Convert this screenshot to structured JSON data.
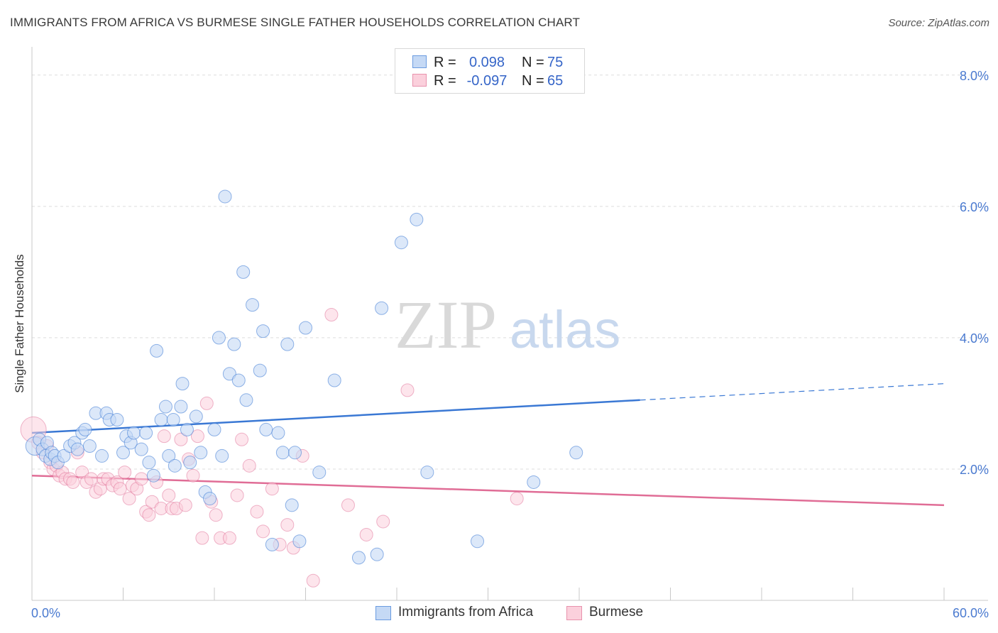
{
  "header": {
    "title": "IMMIGRANTS FROM AFRICA VS BURMESE SINGLE FATHER HOUSEHOLDS CORRELATION CHART",
    "source": "Source: ZipAtlas.com"
  },
  "watermark": {
    "zip": "ZIP",
    "atlas": "atlas"
  },
  "legend": {
    "series": [
      {
        "r_label": "R =",
        "r_value": "0.098",
        "n_label": "N =",
        "n_value": "75",
        "swatch_fill": "#c5d9f5",
        "swatch_stroke": "#6a9be0"
      },
      {
        "r_label": "R =",
        "r_value": "-0.097",
        "n_label": "N =",
        "n_value": "65",
        "swatch_fill": "#fbd0dc",
        "swatch_stroke": "#e892ad"
      }
    ]
  },
  "bottom_legend": {
    "items": [
      {
        "label": "Immigrants from Africa",
        "swatch_fill": "#c5d9f5",
        "swatch_stroke": "#6a9be0"
      },
      {
        "label": "Burmese",
        "swatch_fill": "#fbd0dc",
        "swatch_stroke": "#e892ad"
      }
    ]
  },
  "chart_data": {
    "type": "scatter",
    "title": "IMMIGRANTS FROM AFRICA VS BURMESE SINGLE FATHER HOUSEHOLDS CORRELATION CHART",
    "xlabel": "",
    "ylabel": "Single Father Households",
    "xlim": [
      0,
      60
    ],
    "ylim": [
      0,
      8.3
    ],
    "x_tick_labels": [
      {
        "value": 0,
        "label": "0.0%"
      },
      {
        "value": 60,
        "label": "60.0%"
      }
    ],
    "y_tick_labels": [
      {
        "value": 2,
        "label": "2.0%"
      },
      {
        "value": 4,
        "label": "4.0%"
      },
      {
        "value": 6,
        "label": "6.0%"
      },
      {
        "value": 8,
        "label": "8.0%"
      }
    ],
    "grid": true,
    "colors": {
      "africa": "#3a78d4",
      "burmese": "#e06d96",
      "africa_fill": "#c5d9f5",
      "burmese_fill": "#fbd0dc",
      "tick": "#4a7ad0"
    },
    "series": [
      {
        "name": "Immigrants from Africa",
        "trend": {
          "x": [
            0,
            40
          ],
          "y": [
            2.55,
            3.05
          ],
          "dashed_to_x": 60,
          "dashed_to_y": 3.3
        },
        "points": [
          [
            0.2,
            2.35
          ],
          [
            0.5,
            2.45
          ],
          [
            0.7,
            2.3
          ],
          [
            0.9,
            2.2
          ],
          [
            1.0,
            2.4
          ],
          [
            1.2,
            2.15
          ],
          [
            1.3,
            2.25
          ],
          [
            1.5,
            2.2
          ],
          [
            1.7,
            2.1
          ],
          [
            2.1,
            2.2
          ],
          [
            2.5,
            2.35
          ],
          [
            2.8,
            2.4
          ],
          [
            3.0,
            2.3
          ],
          [
            3.3,
            2.55
          ],
          [
            3.5,
            2.6
          ],
          [
            3.8,
            2.35
          ],
          [
            4.2,
            2.85
          ],
          [
            4.6,
            2.2
          ],
          [
            4.9,
            2.85
          ],
          [
            5.1,
            2.75
          ],
          [
            5.6,
            2.75
          ],
          [
            6.0,
            2.25
          ],
          [
            6.2,
            2.5
          ],
          [
            6.5,
            2.4
          ],
          [
            6.7,
            2.55
          ],
          [
            7.2,
            2.3
          ],
          [
            7.5,
            2.55
          ],
          [
            7.7,
            2.1
          ],
          [
            8.0,
            1.9
          ],
          [
            8.2,
            3.8
          ],
          [
            8.5,
            2.75
          ],
          [
            8.8,
            2.95
          ],
          [
            9.0,
            2.2
          ],
          [
            9.3,
            2.75
          ],
          [
            9.4,
            2.05
          ],
          [
            9.8,
            2.95
          ],
          [
            9.9,
            3.3
          ],
          [
            10.2,
            2.6
          ],
          [
            10.4,
            2.1
          ],
          [
            10.8,
            2.8
          ],
          [
            11.1,
            2.25
          ],
          [
            11.4,
            1.65
          ],
          [
            11.7,
            1.55
          ],
          [
            12.0,
            2.6
          ],
          [
            12.3,
            4.0
          ],
          [
            12.5,
            2.2
          ],
          [
            12.7,
            6.15
          ],
          [
            13.0,
            3.45
          ],
          [
            13.3,
            3.9
          ],
          [
            13.6,
            3.35
          ],
          [
            13.9,
            5.0
          ],
          [
            14.1,
            3.05
          ],
          [
            14.5,
            4.5
          ],
          [
            15.0,
            3.5
          ],
          [
            15.2,
            4.1
          ],
          [
            15.4,
            2.6
          ],
          [
            15.8,
            0.85
          ],
          [
            16.2,
            2.55
          ],
          [
            16.5,
            2.25
          ],
          [
            16.8,
            3.9
          ],
          [
            17.1,
            1.45
          ],
          [
            17.3,
            2.25
          ],
          [
            17.6,
            0.9
          ],
          [
            18.0,
            4.15
          ],
          [
            18.9,
            1.95
          ],
          [
            19.9,
            3.35
          ],
          [
            21.5,
            0.65
          ],
          [
            22.7,
            0.7
          ],
          [
            23.0,
            4.45
          ],
          [
            24.3,
            5.45
          ],
          [
            25.3,
            5.8
          ],
          [
            26.0,
            1.95
          ],
          [
            29.3,
            0.9
          ],
          [
            33.0,
            1.8
          ],
          [
            35.8,
            2.25
          ]
        ]
      },
      {
        "name": "Burmese",
        "trend": {
          "x": [
            0,
            60
          ],
          "y": [
            1.9,
            1.45
          ]
        },
        "points": [
          [
            0.1,
            2.6
          ],
          [
            0.4,
            2.4
          ],
          [
            0.7,
            2.25
          ],
          [
            1.0,
            2.35
          ],
          [
            1.2,
            2.1
          ],
          [
            1.4,
            2.0
          ],
          [
            1.6,
            2.05
          ],
          [
            1.8,
            1.9
          ],
          [
            2.0,
            1.95
          ],
          [
            2.2,
            1.85
          ],
          [
            2.5,
            1.85
          ],
          [
            2.7,
            1.8
          ],
          [
            3.0,
            2.25
          ],
          [
            3.3,
            1.95
          ],
          [
            3.6,
            1.8
          ],
          [
            3.9,
            1.85
          ],
          [
            4.2,
            1.65
          ],
          [
            4.5,
            1.7
          ],
          [
            4.7,
            1.85
          ],
          [
            5.0,
            1.85
          ],
          [
            5.3,
            1.75
          ],
          [
            5.6,
            1.8
          ],
          [
            5.8,
            1.7
          ],
          [
            6.1,
            1.95
          ],
          [
            6.4,
            1.55
          ],
          [
            6.6,
            1.75
          ],
          [
            6.9,
            1.7
          ],
          [
            7.2,
            1.85
          ],
          [
            7.5,
            1.35
          ],
          [
            7.7,
            1.3
          ],
          [
            7.9,
            1.5
          ],
          [
            8.2,
            1.8
          ],
          [
            8.5,
            1.4
          ],
          [
            8.7,
            2.5
          ],
          [
            9.0,
            1.6
          ],
          [
            9.2,
            1.4
          ],
          [
            9.5,
            1.4
          ],
          [
            9.8,
            2.45
          ],
          [
            10.1,
            1.45
          ],
          [
            10.3,
            2.15
          ],
          [
            10.6,
            1.9
          ],
          [
            10.9,
            2.5
          ],
          [
            11.2,
            0.95
          ],
          [
            11.5,
            3.0
          ],
          [
            11.8,
            1.5
          ],
          [
            12.1,
            1.3
          ],
          [
            12.4,
            0.95
          ],
          [
            13.0,
            0.95
          ],
          [
            13.5,
            1.6
          ],
          [
            13.8,
            2.45
          ],
          [
            14.3,
            2.05
          ],
          [
            14.8,
            1.35
          ],
          [
            15.2,
            1.05
          ],
          [
            15.8,
            1.7
          ],
          [
            16.3,
            0.85
          ],
          [
            16.8,
            1.15
          ],
          [
            17.2,
            0.8
          ],
          [
            17.8,
            2.2
          ],
          [
            18.5,
            0.3
          ],
          [
            19.7,
            4.35
          ],
          [
            20.8,
            1.45
          ],
          [
            22.0,
            1.0
          ],
          [
            23.1,
            1.2
          ],
          [
            24.7,
            3.2
          ],
          [
            31.9,
            1.55
          ]
        ]
      }
    ]
  }
}
